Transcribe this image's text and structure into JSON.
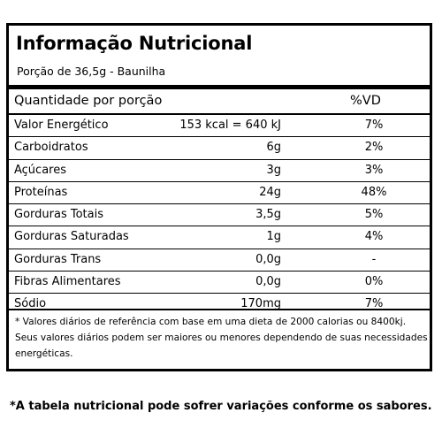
{
  "label": {
    "title": "Informação Nutricional",
    "portion": "Porção de 36,5g - Baunilha",
    "header": {
      "quantity": "Quantidade por porção",
      "vd": "%VD"
    },
    "rows": [
      {
        "name": "Valor Energético",
        "amount": "153 kcal = 640 kJ",
        "vd": "7%"
      },
      {
        "name": "Carboidratos",
        "amount": "6g",
        "vd": "2%"
      },
      {
        "name": "Açúcares",
        "amount": "3g",
        "vd": "3%"
      },
      {
        "name": "Proteínas",
        "amount": "24g",
        "vd": "48%"
      },
      {
        "name": "Gorduras Totais",
        "amount": "3,5g",
        "vd": "5%"
      },
      {
        "name": "Gorduras Saturadas",
        "amount": "1g",
        "vd": "4%"
      },
      {
        "name": "Gorduras Trans",
        "amount": "0,0g",
        "vd": "-"
      },
      {
        "name": "Fibras Alimentares",
        "amount": "0,0g",
        "vd": "0%"
      },
      {
        "name": "Sódio",
        "amount": "170mg",
        "vd": "7%"
      }
    ],
    "footnote": "* Valores diários de referência com base em uma dieta de 2000 calorias ou 8400kj. Seus valores diários podem ser maiores ou menores dependendo de suas necessidades energéticas."
  },
  "disclaimer": "*A tabela nutricional pode sofrer variações conforme os sabores."
}
